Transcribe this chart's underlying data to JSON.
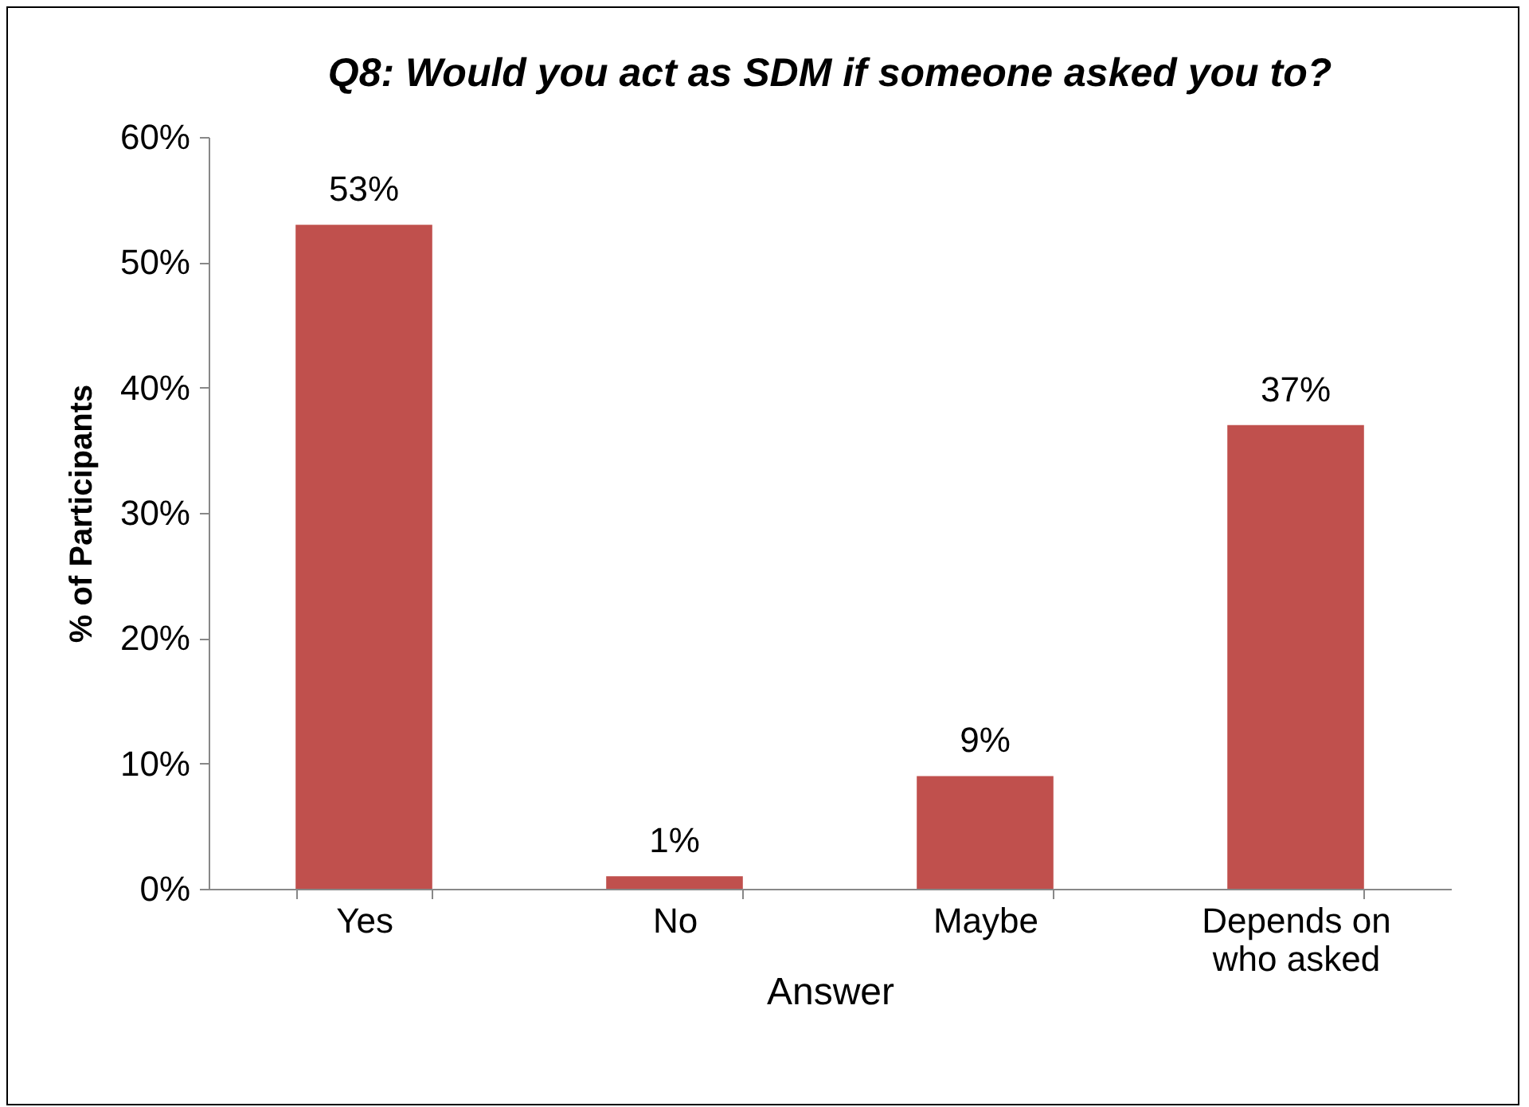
{
  "chart_data": {
    "type": "bar",
    "title": "Q8: Would you act as SDM if someone asked you to?",
    "xlabel": "Answer",
    "ylabel": "% of Participants",
    "categories": [
      "Yes",
      "No",
      "Maybe",
      "Depends on who asked"
    ],
    "values": [
      53,
      1,
      9,
      37
    ],
    "value_labels": [
      "53%",
      "1%",
      "9%",
      "37%"
    ],
    "color": "#c0504d",
    "ylim": [
      0,
      60
    ],
    "yticks": [
      {
        "value": 0,
        "label": "0%"
      },
      {
        "value": 10,
        "label": "10%"
      },
      {
        "value": 20,
        "label": "20%"
      },
      {
        "value": 30,
        "label": "30%"
      },
      {
        "value": 40,
        "label": "40%"
      },
      {
        "value": 50,
        "label": "50%"
      },
      {
        "value": 60,
        "label": "60%"
      }
    ],
    "grid": false
  }
}
